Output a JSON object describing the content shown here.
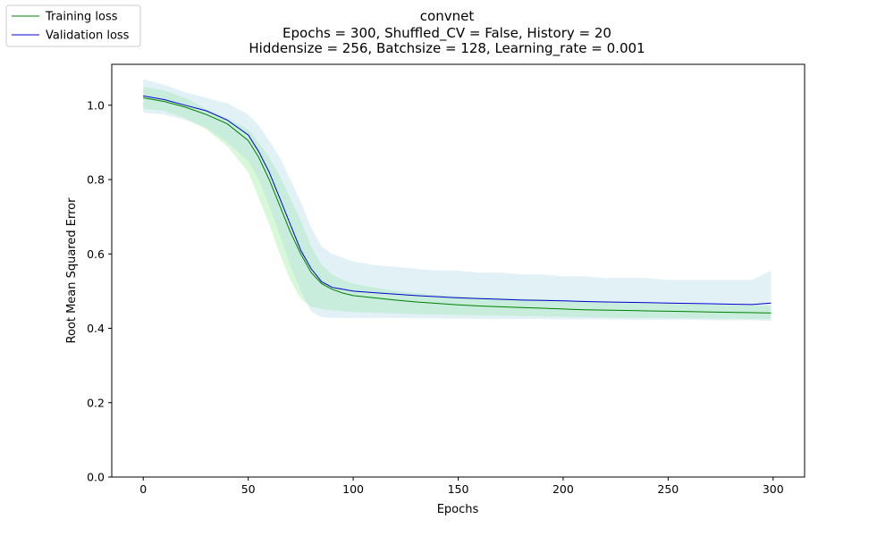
{
  "chart_data": {
    "type": "line",
    "title_lines": [
      "convnet",
      "Epochs = 300, Shuffled_CV = False, History = 20",
      "Hiddensize = 256, Batchsize = 128, Learning_rate = 0.001"
    ],
    "xlabel": "Epochs",
    "ylabel": "Root Mean Squared Error",
    "xlim": [
      -15,
      315
    ],
    "ylim": [
      0,
      1.11
    ],
    "x_ticks": [
      0,
      50,
      100,
      150,
      200,
      250,
      300
    ],
    "x_tick_labels": [
      "0",
      "50",
      "100",
      "150",
      "200",
      "250",
      "300"
    ],
    "y_ticks": [
      0.0,
      0.2,
      0.4,
      0.6,
      0.8,
      1.0
    ],
    "y_tick_labels": [
      "0.0",
      "0.2",
      "0.4",
      "0.6",
      "0.8",
      "1.0"
    ],
    "grid": false,
    "legend_position": "upper-left-outside",
    "x": [
      0,
      10,
      20,
      30,
      40,
      50,
      55,
      60,
      65,
      70,
      75,
      80,
      85,
      90,
      95,
      100,
      110,
      120,
      130,
      140,
      150,
      160,
      170,
      180,
      190,
      200,
      210,
      220,
      230,
      240,
      250,
      260,
      270,
      280,
      290,
      299
    ],
    "series": [
      {
        "name": "Training loss",
        "color": "#008000",
        "band_color": "#90ee90",
        "values": [
          1.02,
          1.01,
          0.995,
          0.975,
          0.95,
          0.905,
          0.86,
          0.8,
          0.73,
          0.66,
          0.6,
          0.55,
          0.52,
          0.505,
          0.495,
          0.488,
          0.482,
          0.476,
          0.471,
          0.467,
          0.463,
          0.46,
          0.458,
          0.456,
          0.454,
          0.452,
          0.45,
          0.449,
          0.448,
          0.447,
          0.446,
          0.445,
          0.444,
          0.443,
          0.442,
          0.441
        ],
        "lower": [
          0.99,
          0.985,
          0.965,
          0.935,
          0.89,
          0.82,
          0.75,
          0.68,
          0.6,
          0.53,
          0.48,
          0.458,
          0.452,
          0.448,
          0.446,
          0.444,
          0.442,
          0.44,
          0.438,
          0.437,
          0.436,
          0.435,
          0.434,
          0.433,
          0.432,
          0.431,
          0.43,
          0.429,
          0.428,
          0.428,
          0.427,
          0.427,
          0.426,
          0.426,
          0.425,
          0.425
        ],
        "upper": [
          1.05,
          1.04,
          1.02,
          0.99,
          0.965,
          0.935,
          0.9,
          0.86,
          0.81,
          0.75,
          0.69,
          0.62,
          0.57,
          0.545,
          0.53,
          0.52,
          0.51,
          0.5,
          0.495,
          0.49,
          0.487,
          0.484,
          0.482,
          0.48,
          0.478,
          0.476,
          0.474,
          0.472,
          0.47,
          0.468,
          0.466,
          0.465,
          0.464,
          0.463,
          0.462,
          0.46
        ]
      },
      {
        "name": "Validation loss",
        "color": "#0000cd",
        "band_color": "#add8e6",
        "values": [
          1.025,
          1.015,
          1.0,
          0.985,
          0.96,
          0.92,
          0.875,
          0.82,
          0.75,
          0.68,
          0.61,
          0.56,
          0.525,
          0.51,
          0.505,
          0.5,
          0.496,
          0.492,
          0.488,
          0.485,
          0.482,
          0.48,
          0.478,
          0.476,
          0.475,
          0.474,
          0.472,
          0.471,
          0.47,
          0.469,
          0.468,
          0.467,
          0.466,
          0.465,
          0.464,
          0.468
        ],
        "lower": [
          0.98,
          0.975,
          0.96,
          0.94,
          0.9,
          0.85,
          0.8,
          0.73,
          0.65,
          0.57,
          0.5,
          0.445,
          0.43,
          0.428,
          0.428,
          0.428,
          0.428,
          0.428,
          0.427,
          0.427,
          0.426,
          0.426,
          0.425,
          0.425,
          0.425,
          0.424,
          0.424,
          0.424,
          0.423,
          0.423,
          0.423,
          0.423,
          0.422,
          0.422,
          0.422,
          0.42
        ],
        "upper": [
          1.07,
          1.055,
          1.035,
          1.02,
          1.005,
          0.975,
          0.945,
          0.905,
          0.86,
          0.8,
          0.74,
          0.67,
          0.62,
          0.6,
          0.59,
          0.58,
          0.57,
          0.565,
          0.56,
          0.555,
          0.555,
          0.55,
          0.55,
          0.545,
          0.545,
          0.54,
          0.54,
          0.535,
          0.535,
          0.535,
          0.53,
          0.53,
          0.53,
          0.53,
          0.53,
          0.555
        ]
      }
    ]
  }
}
